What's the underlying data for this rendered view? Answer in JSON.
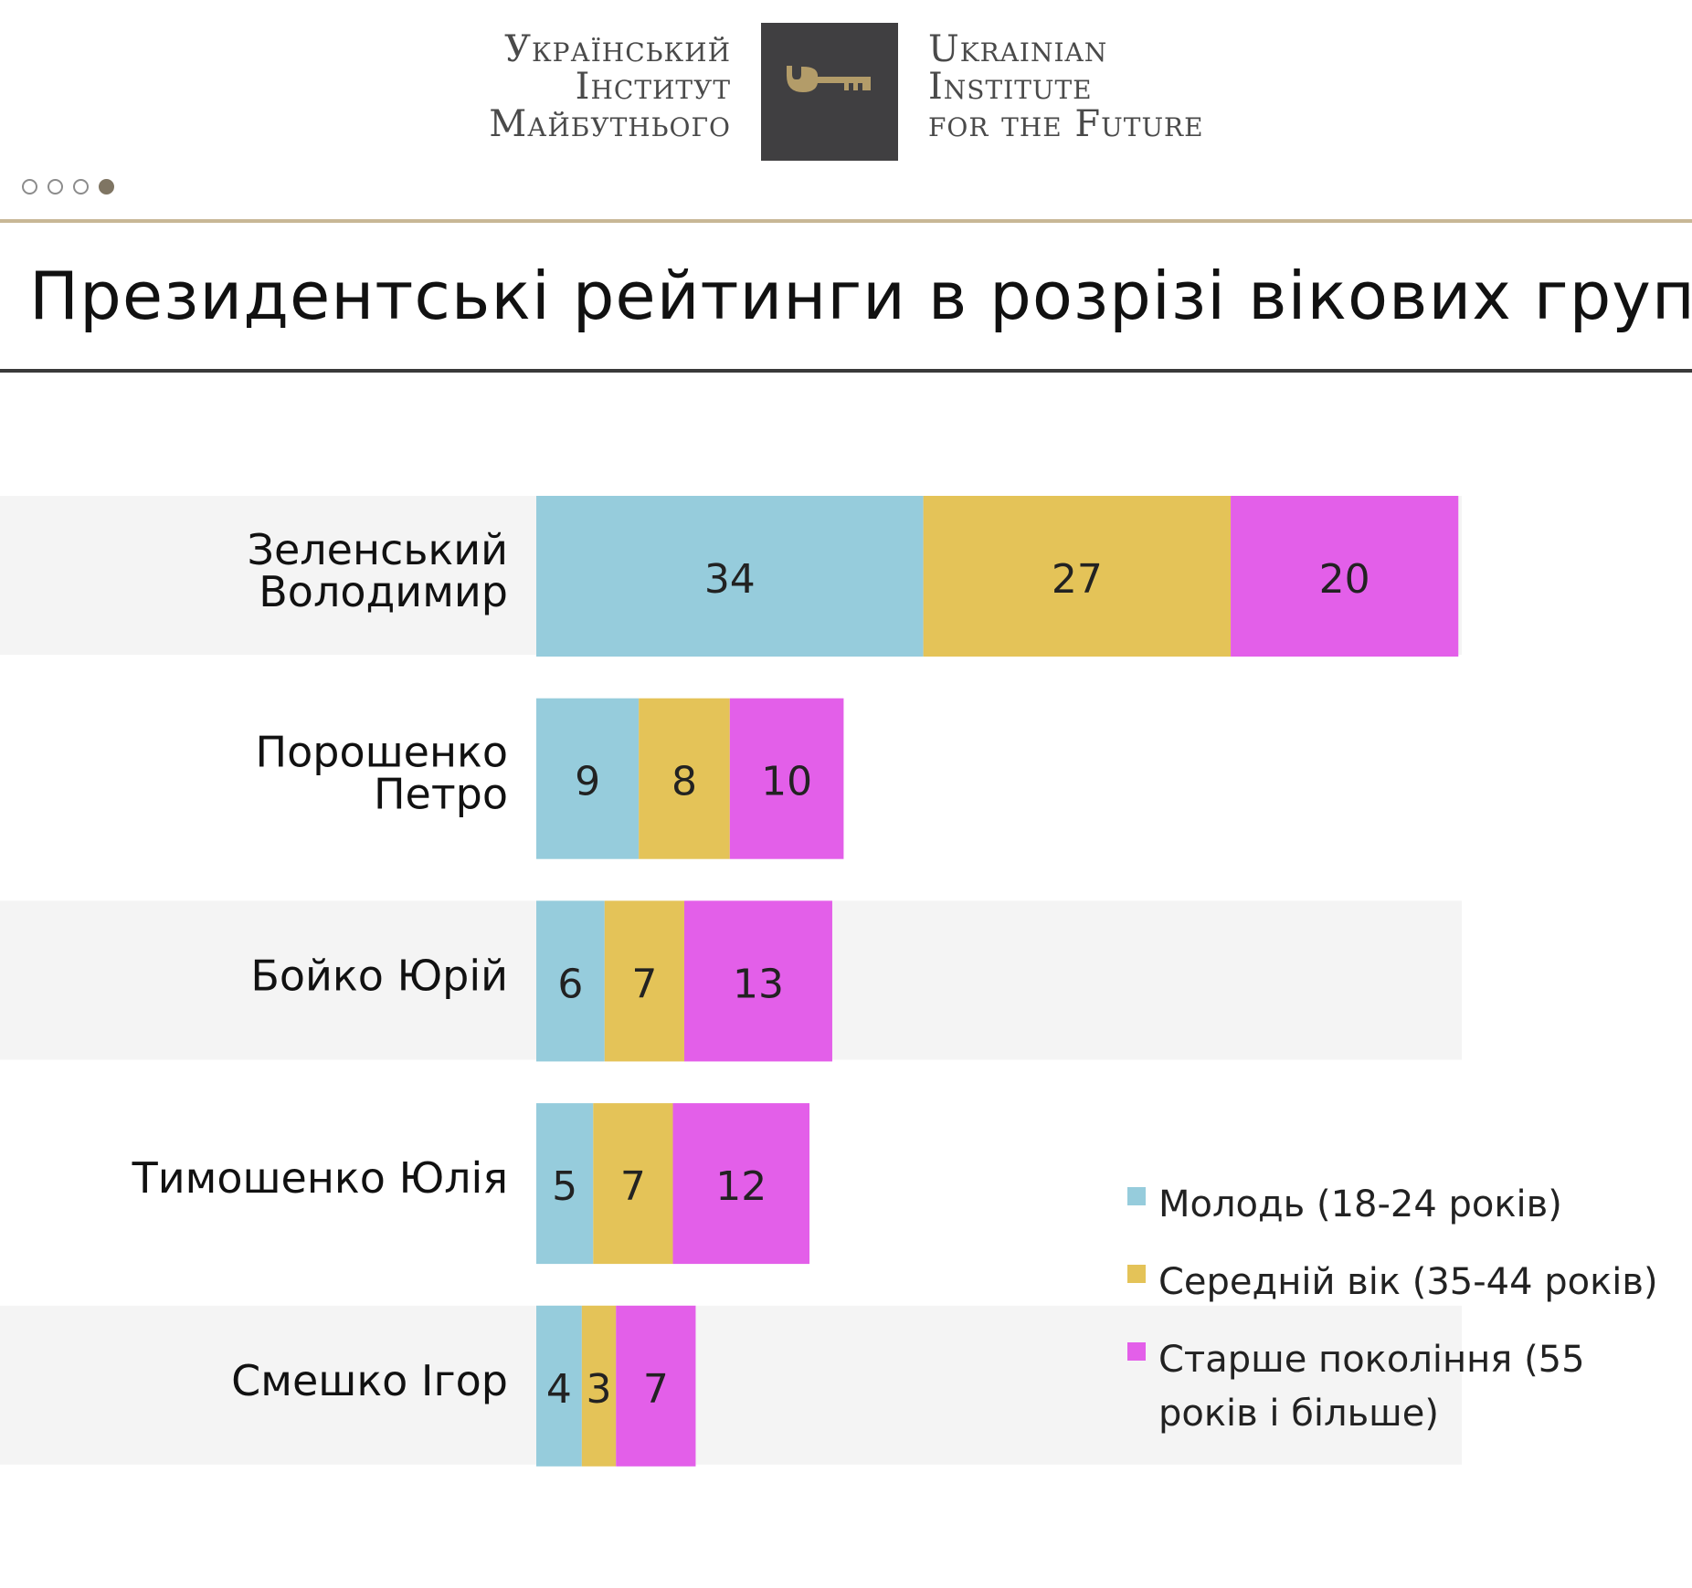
{
  "header": {
    "org_ua": [
      "Український",
      "Інститут",
      "Майбутнього"
    ],
    "org_en": [
      "Ukrainian",
      "Institute",
      "for the Future"
    ],
    "slide_dots": {
      "total": 4,
      "active": 4
    },
    "logo_icon": "key-icon",
    "colors": {
      "logo_box": "#403f41",
      "key": "#b39c69",
      "gold_rule": "#c8b796"
    }
  },
  "chart_data": {
    "type": "bar",
    "orientation": "horizontal",
    "stacked": true,
    "title": "Президентські рейтинги в розрізі вікових груп",
    "categories": [
      [
        "Зеленський",
        "Володимир"
      ],
      [
        "Порошенко",
        "Петро"
      ],
      [
        "Бойко Юрій"
      ],
      [
        "Тимошенко Юлія"
      ],
      [
        "Смешко Ігор"
      ]
    ],
    "series": [
      {
        "name": "Молодь (18-24 років)",
        "color": "#96ccdc",
        "values": [
          34,
          9,
          6,
          5,
          4
        ]
      },
      {
        "name": "Середній вік (35-44 років)",
        "color": "#e4c358",
        "values": [
          27,
          8,
          7,
          7,
          3
        ]
      },
      {
        "name": "Старше покоління (55 років і більше)",
        "color": "#e35fe9",
        "values": [
          20,
          10,
          13,
          12,
          7
        ]
      }
    ],
    "data_labels": true,
    "legend_position": "bottom-right",
    "grid": false,
    "xlabel": "",
    "ylabel": "",
    "row_band_color": "#f4f4f4"
  }
}
